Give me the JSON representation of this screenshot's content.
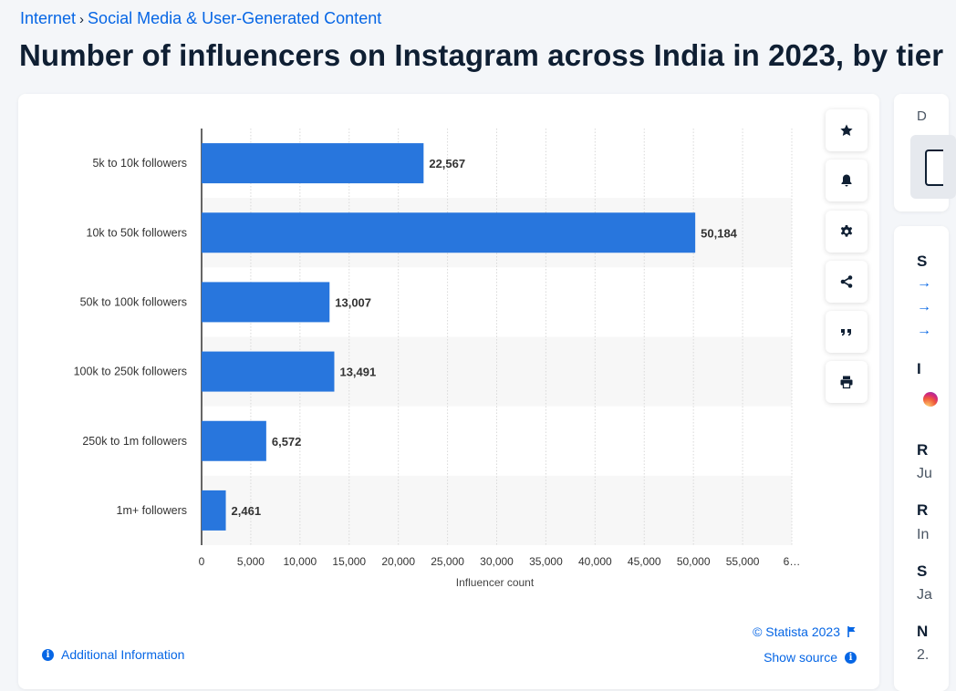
{
  "breadcrumb": {
    "parent": "Internet",
    "separator": "›",
    "current": "Social Media & User-Generated Content"
  },
  "title": "Number of influencers on Instagram across India in 2023, by tier",
  "chart_data": {
    "type": "bar",
    "orientation": "horizontal",
    "categories": [
      "5k to 10k followers",
      "10k to 50k followers",
      "50k to 100k followers",
      "100k to 250k followers",
      "250k to 1m followers",
      "1m+ followers"
    ],
    "values": [
      22567,
      50184,
      13007,
      13491,
      6572,
      2461
    ],
    "value_labels": [
      "22,567",
      "50,184",
      "13,007",
      "13,491",
      "6,572",
      "2,461"
    ],
    "xlabel": "Influencer count",
    "xlim": [
      0,
      60000
    ],
    "x_ticks": [
      "0",
      "5,000",
      "10,000",
      "15,000",
      "20,000",
      "25,000",
      "30,000",
      "35,000",
      "40,000",
      "45,000",
      "50,000",
      "55,000",
      "6…"
    ],
    "bar_color": "#2876dd",
    "grid": "vertical dotted",
    "alternate_row_shading": true
  },
  "toolbar": [
    {
      "name": "favorite-button",
      "icon": "star-icon"
    },
    {
      "name": "notification-button",
      "icon": "bell-icon"
    },
    {
      "name": "settings-button",
      "icon": "gear-icon"
    },
    {
      "name": "share-button",
      "icon": "share-icon"
    },
    {
      "name": "cite-button",
      "icon": "quote-icon"
    },
    {
      "name": "print-button",
      "icon": "printer-icon"
    }
  ],
  "footer": {
    "credit": "© Statista 2023",
    "show_source": "Show source",
    "additional_info": "Additional Information"
  },
  "sidebar": {
    "download_label": "D",
    "source_label": "S",
    "arrows": [
      "→",
      "→",
      "→"
    ],
    "info_label": "I",
    "release_label": "R",
    "release_value": "Ju",
    "region_label": "R",
    "region_value": "In",
    "survey_label": "S",
    "survey_value": "Ja",
    "number_label": "N",
    "number_value": "2."
  },
  "colors": {
    "accent": "#0666e5",
    "bar": "#2876dd",
    "text": "#0f1f33"
  }
}
